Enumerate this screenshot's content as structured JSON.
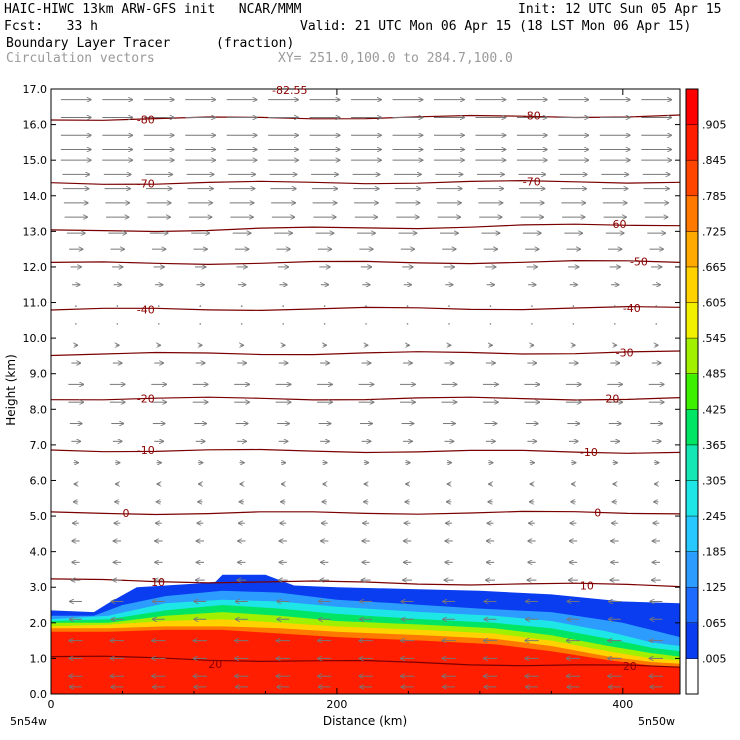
{
  "header": {
    "line1_left": "HAIC-HIWC 13km ARW-GFS init   NCAR/MMM",
    "line1_right": "Init: 12 UTC Sun 05 Apr 15",
    "line2_left": "Fcst:   33 h",
    "line2_right": "Valid: 21 UTC Mon 06 Apr 15 (18 LST Mon 06 Apr 15)",
    "line3_left": "Boundary Layer Tracer",
    "line3_units": "(fraction)",
    "line4_left": "Circulation vectors",
    "line4_xy": "XY= 251.0,100.0 to 284.7,100.0"
  },
  "chart_data": {
    "type": "heatmap",
    "title": "Boundary Layer Tracer",
    "units": "(fraction)",
    "xlabel": "Distance (km)",
    "ylabel": "Height (km)",
    "xlim": [
      0,
      440
    ],
    "ylim": [
      0,
      17
    ],
    "x_ticks": [
      "0",
      "200",
      "400"
    ],
    "x_tick_values": [
      0,
      200,
      400
    ],
    "x_endpoint_labels": [
      "5n54w",
      "5n50w"
    ],
    "y_ticks": [
      "0.0",
      "1.0",
      "2.0",
      "3.0",
      "4.0",
      "5.0",
      "6.0",
      "7.0",
      "8.0",
      "9.0",
      "10.0",
      "11.0",
      "12.0",
      "13.0",
      "14.0",
      "15.0",
      "16.0",
      "17.0"
    ],
    "colorbar": {
      "labels": [
        ".005",
        ".065",
        ".125",
        ".185",
        ".245",
        ".305",
        ".365",
        ".425",
        ".485",
        ".545",
        ".605",
        ".665",
        ".725",
        ".785",
        ".845",
        ".905"
      ],
      "colors": [
        "#ffffff",
        "#0a3cf0",
        "#1e6cff",
        "#2c9cff",
        "#26c8ff",
        "#1ee6e6",
        "#14e6b4",
        "#00e664",
        "#3cf000",
        "#a0f000",
        "#f0f000",
        "#ffd200",
        "#ffaa00",
        "#ff7800",
        "#ff4600",
        "#ff1e00",
        "#ff0000"
      ]
    },
    "tracer_layers": [
      {
        "level": 0.005,
        "color": "#0a3cf0",
        "top": [
          [
            0,
            2.35
          ],
          [
            30,
            2.3
          ],
          [
            40,
            2.55
          ],
          [
            60,
            3.0
          ],
          [
            100,
            3.1
          ],
          [
            115,
            3.15
          ],
          [
            120,
            3.35
          ],
          [
            150,
            3.35
          ],
          [
            170,
            3.05
          ],
          [
            200,
            3.0
          ],
          [
            250,
            2.95
          ],
          [
            300,
            2.9
          ],
          [
            350,
            2.8
          ],
          [
            400,
            2.6
          ],
          [
            440,
            2.55
          ]
        ]
      },
      {
        "level": 0.125,
        "color": "#2c9cff",
        "top": [
          [
            0,
            2.2
          ],
          [
            30,
            2.2
          ],
          [
            50,
            2.5
          ],
          [
            80,
            2.75
          ],
          [
            120,
            2.9
          ],
          [
            160,
            2.85
          ],
          [
            200,
            2.65
          ],
          [
            260,
            2.5
          ],
          [
            300,
            2.4
          ],
          [
            350,
            2.3
          ],
          [
            400,
            2.0
          ],
          [
            420,
            1.8
          ],
          [
            440,
            1.6
          ]
        ]
      },
      {
        "level": 0.245,
        "color": "#1ee6e6",
        "top": [
          [
            0,
            2.1
          ],
          [
            40,
            2.2
          ],
          [
            80,
            2.55
          ],
          [
            120,
            2.65
          ],
          [
            160,
            2.6
          ],
          [
            200,
            2.45
          ],
          [
            260,
            2.3
          ],
          [
            310,
            2.2
          ],
          [
            350,
            2.05
          ],
          [
            390,
            1.75
          ],
          [
            420,
            1.45
          ],
          [
            440,
            1.35
          ]
        ]
      },
      {
        "level": 0.365,
        "color": "#00e664",
        "top": [
          [
            0,
            2.05
          ],
          [
            40,
            2.1
          ],
          [
            80,
            2.35
          ],
          [
            120,
            2.5
          ],
          [
            160,
            2.4
          ],
          [
            200,
            2.25
          ],
          [
            260,
            2.1
          ],
          [
            310,
            2.0
          ],
          [
            350,
            1.85
          ],
          [
            390,
            1.55
          ],
          [
            420,
            1.3
          ],
          [
            440,
            1.2
          ]
        ]
      },
      {
        "level": 0.485,
        "color": "#a0f000",
        "top": [
          [
            0,
            2.0
          ],
          [
            40,
            2.0
          ],
          [
            80,
            2.2
          ],
          [
            120,
            2.3
          ],
          [
            160,
            2.2
          ],
          [
            200,
            2.05
          ],
          [
            260,
            1.95
          ],
          [
            310,
            1.85
          ],
          [
            350,
            1.65
          ],
          [
            390,
            1.35
          ],
          [
            420,
            1.15
          ],
          [
            440,
            1.05
          ]
        ]
      },
      {
        "level": 0.605,
        "color": "#ffd200",
        "top": [
          [
            0,
            1.9
          ],
          [
            40,
            1.95
          ],
          [
            80,
            2.05
          ],
          [
            120,
            2.1
          ],
          [
            160,
            2.0
          ],
          [
            200,
            1.9
          ],
          [
            260,
            1.8
          ],
          [
            310,
            1.7
          ],
          [
            350,
            1.5
          ],
          [
            390,
            1.2
          ],
          [
            420,
            1.0
          ],
          [
            440,
            0.95
          ]
        ]
      },
      {
        "level": 0.725,
        "color": "#ff7800",
        "top": [
          [
            0,
            1.85
          ],
          [
            40,
            1.85
          ],
          [
            80,
            1.9
          ],
          [
            120,
            1.9
          ],
          [
            160,
            1.85
          ],
          [
            200,
            1.75
          ],
          [
            260,
            1.65
          ],
          [
            310,
            1.55
          ],
          [
            350,
            1.35
          ],
          [
            390,
            1.05
          ],
          [
            420,
            0.9
          ],
          [
            440,
            0.85
          ]
        ]
      },
      {
        "level": 0.845,
        "color": "#ff1e00",
        "top": [
          [
            0,
            1.75
          ],
          [
            40,
            1.75
          ],
          [
            80,
            1.8
          ],
          [
            120,
            1.8
          ],
          [
            160,
            1.7
          ],
          [
            200,
            1.6
          ],
          [
            260,
            1.5
          ],
          [
            310,
            1.4
          ],
          [
            350,
            1.2
          ],
          [
            390,
            0.95
          ],
          [
            420,
            0.8
          ],
          [
            440,
            0.75
          ]
        ]
      }
    ],
    "temperature_contours": [
      {
        "label": "20",
        "y_left": 1.05,
        "y_right": 0.75,
        "label_positions": [
          [
            110,
            0.85
          ],
          [
            400,
            0.78
          ]
        ]
      },
      {
        "label": "10",
        "y_left": 3.2,
        "y_right": 3.05,
        "label_positions": [
          [
            70,
            3.15
          ],
          [
            370,
            3.05
          ]
        ]
      },
      {
        "label": "0",
        "y_left": 5.08,
        "y_right": 5.1,
        "label_positions": [
          [
            50,
            5.08
          ],
          [
            380,
            5.1
          ]
        ]
      },
      {
        "label": "-10",
        "y_left": 6.85,
        "y_right": 6.8,
        "label_positions": [
          [
            60,
            6.85
          ],
          [
            370,
            6.8
          ]
        ]
      },
      {
        "label": "-20",
        "y_left": 8.3,
        "y_right": 8.3,
        "label_positions": [
          [
            60,
            8.3
          ],
          [
            385,
            8.3
          ]
        ]
      },
      {
        "label": "-30",
        "y_left": 9.55,
        "y_right": 9.6,
        "label_positions": [
          [
            395,
            9.6
          ]
        ]
      },
      {
        "label": "-40",
        "y_left": 10.8,
        "y_right": 10.85,
        "label_positions": [
          [
            60,
            10.8
          ],
          [
            400,
            10.85
          ]
        ]
      },
      {
        "label": "-50",
        "y_left": 12.1,
        "y_right": 12.15,
        "label_positions": [
          [
            405,
            12.15
          ]
        ]
      },
      {
        "label": "-60",
        "y_left": 13.0,
        "y_right": 13.2,
        "label_positions": [
          [
            390,
            13.2
          ]
        ]
      },
      {
        "label": "-70",
        "y_left": 14.35,
        "y_right": 14.4,
        "label_positions": [
          [
            60,
            14.35
          ],
          [
            330,
            14.4
          ]
        ]
      },
      {
        "label": "-80",
        "y_left": 16.15,
        "y_right": 16.25,
        "label_positions": [
          [
            60,
            16.15
          ],
          [
            330,
            16.25
          ]
        ]
      }
    ],
    "top_partial_label": "-82.55",
    "vectors": {
      "x_spacing_km": 29,
      "rows": [
        {
          "z": 16.7,
          "u": 1.0
        },
        {
          "z": 16.2,
          "u": 1.0
        },
        {
          "z": 15.7,
          "u": 1.0
        },
        {
          "z": 15.3,
          "u": 1.0
        },
        {
          "z": 15.0,
          "u": 1.0
        },
        {
          "z": 14.6,
          "u": 0.9
        },
        {
          "z": 14.2,
          "u": 0.85
        },
        {
          "z": 13.8,
          "u": 0.8
        },
        {
          "z": 13.4,
          "u": 0.75
        },
        {
          "z": 12.95,
          "u": 0.6
        },
        {
          "z": 12.5,
          "u": 0.45
        },
        {
          "z": 12.0,
          "u": 0.35
        },
        {
          "z": 11.5,
          "u": 0.25
        },
        {
          "z": 10.9,
          "u": 0.05
        },
        {
          "z": 10.4,
          "u": -0.05
        },
        {
          "z": 9.8,
          "u": 0.1
        },
        {
          "z": 9.3,
          "u": 0.3
        },
        {
          "z": 8.7,
          "u": 0.5
        },
        {
          "z": 8.2,
          "u": 0.5
        },
        {
          "z": 7.6,
          "u": 0.4
        },
        {
          "z": 7.1,
          "u": 0.3
        },
        {
          "z": 6.5,
          "u": 0.15
        },
        {
          "z": 5.9,
          "u": -0.1
        },
        {
          "z": 5.4,
          "u": -0.15
        },
        {
          "z": 4.8,
          "u": -0.2
        },
        {
          "z": 4.3,
          "u": -0.25
        },
        {
          "z": 3.7,
          "u": -0.25
        },
        {
          "z": 3.2,
          "u": -0.3
        },
        {
          "z": 2.6,
          "u": -0.4
        },
        {
          "z": 2.1,
          "u": -0.4
        },
        {
          "z": 1.5,
          "u": -0.45
        },
        {
          "z": 1.0,
          "u": -0.45
        },
        {
          "z": 0.5,
          "u": -0.45
        },
        {
          "z": 0.2,
          "u": -0.4
        }
      ]
    }
  }
}
